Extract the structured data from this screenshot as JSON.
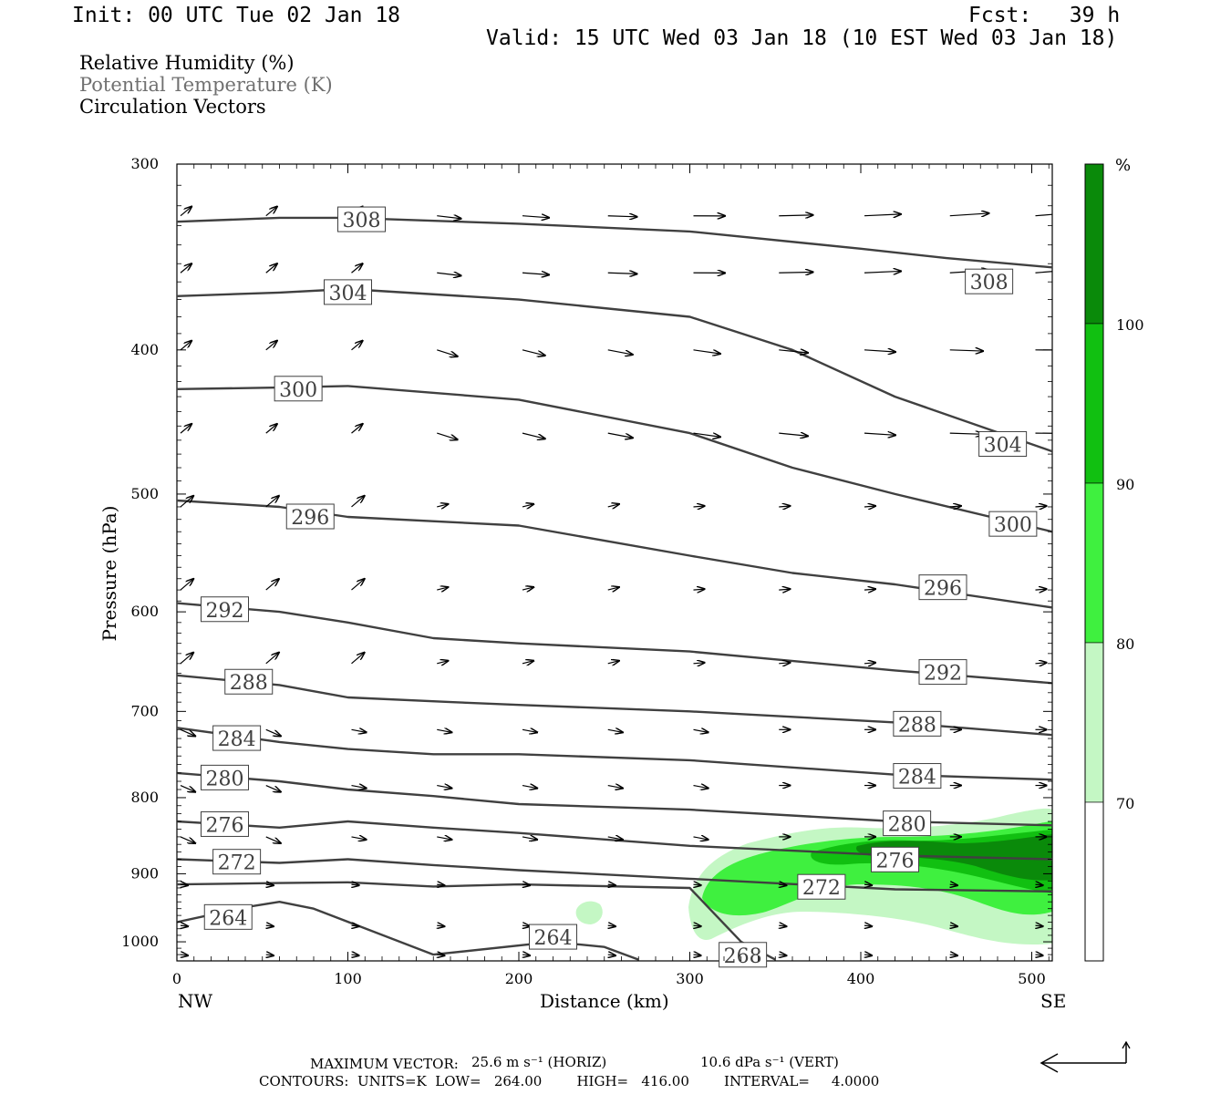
{
  "header": {
    "init": "Init: 00 UTC Tue 02 Jan 18",
    "fcst": "Fcst:   39 h",
    "valid": "Valid: 15 UTC Wed 03 Jan 18 (10 EST Wed 03 Jan 18)"
  },
  "legend": {
    "line1": "Relative Humidity (%)",
    "line2": "Potential Temperature (K)",
    "line3": "Circulation Vectors"
  },
  "footer": {
    "max_vector_label": "MAXIMUM VECTOR:",
    "max_vector_horiz": "25.6 m s⁻¹ (HORIZ)",
    "max_vector_vert": "10.6 dPa s⁻¹ (VERT)",
    "contours": "CONTOURS:  UNITS=K  LOW=   264.00        HIGH=   416.00        INTERVAL=     4.0000"
  },
  "colors": {
    "rh70": "#c4f7c4",
    "rh80": "#3ff03f",
    "rh90": "#11c011",
    "rh100": "#0a8a0a",
    "contour": "#404040",
    "vector": "#000000"
  },
  "chart_data": {
    "type": "contour",
    "xlabel": "Distance (km)",
    "ylabel": "Pressure (hPa)",
    "x_left_label": "NW",
    "x_right_label": "SE",
    "xlim": [
      0,
      512
    ],
    "ylim": [
      300,
      1030
    ],
    "y_scale": "log",
    "x_ticks": [
      0,
      100,
      200,
      300,
      400,
      500
    ],
    "y_ticks": [
      300,
      400,
      500,
      600,
      700,
      800,
      900,
      1000
    ],
    "colorbar": {
      "unit": "%",
      "levels": [
        70,
        80,
        90,
        100
      ],
      "fills": [
        "#ffffff",
        "#c4f7c4",
        "#3ff03f",
        "#11c011",
        "#0a8a0a"
      ]
    },
    "theta_contours": [
      {
        "label": "308",
        "x": [
          0,
          60,
          100,
          200,
          300,
          400,
          450,
          512
        ],
        "y": [
          328,
          326,
          326,
          329,
          333,
          342,
          347,
          352
        ],
        "labels_at": [
          [
            108,
            327
          ],
          [
            475,
            360
          ]
        ]
      },
      {
        "label": "304",
        "x": [
          0,
          60,
          100,
          200,
          300,
          360,
          420,
          512
        ],
        "y": [
          368,
          366,
          364,
          370,
          380,
          400,
          430,
          468
        ],
        "labels_at": [
          [
            100,
            366
          ],
          [
            483,
            463
          ]
        ]
      },
      {
        "label": "300",
        "x": [
          0,
          60,
          100,
          200,
          300,
          360,
          420,
          512
        ],
        "y": [
          425,
          424,
          423,
          432,
          455,
          480,
          500,
          530
        ],
        "labels_at": [
          [
            71,
            425
          ],
          [
            489,
            524
          ]
        ]
      },
      {
        "label": "296",
        "x": [
          0,
          60,
          100,
          200,
          300,
          360,
          420,
          512
        ],
        "y": [
          505,
          510,
          518,
          525,
          550,
          565,
          575,
          596
        ],
        "labels_at": [
          [
            78,
            518
          ],
          [
            448,
            578
          ]
        ]
      },
      {
        "label": "292",
        "x": [
          0,
          60,
          100,
          150,
          200,
          300,
          420,
          512
        ],
        "y": [
          592,
          600,
          610,
          625,
          630,
          638,
          657,
          670
        ],
        "labels_at": [
          [
            28,
            598
          ],
          [
            448,
            659
          ]
        ]
      },
      {
        "label": "288",
        "x": [
          0,
          60,
          100,
          160,
          200,
          300,
          420,
          512
        ],
        "y": [
          662,
          672,
          685,
          690,
          693,
          700,
          712,
          726
        ],
        "labels_at": [
          [
            42,
            669
          ],
          [
            433,
            714
          ]
        ]
      },
      {
        "label": "284",
        "x": [
          0,
          60,
          100,
          150,
          200,
          300,
          420,
          512
        ],
        "y": [
          718,
          734,
          742,
          748,
          748,
          755,
          772,
          778
        ],
        "labels_at": [
          [
            35,
            730
          ],
          [
            433,
            774
          ]
        ]
      },
      {
        "label": "280",
        "x": [
          0,
          60,
          100,
          150,
          200,
          300,
          420,
          512
        ],
        "y": [
          770,
          780,
          790,
          798,
          808,
          815,
          830,
          835
        ],
        "labels_at": [
          [
            28,
            776
          ],
          [
            427,
            833
          ]
        ]
      },
      {
        "label": "276",
        "x": [
          0,
          60,
          100,
          150,
          200,
          300,
          420,
          512
        ],
        "y": [
          830,
          838,
          830,
          838,
          845,
          862,
          875,
          880
        ],
        "labels_at": [
          [
            28,
            834
          ],
          [
            420,
            881
          ]
        ]
      },
      {
        "label": "272",
        "x": [
          0,
          60,
          100,
          150,
          200,
          300,
          420,
          512
        ],
        "y": [
          880,
          885,
          880,
          888,
          895,
          907,
          922,
          925
        ],
        "labels_at": [
          [
            35,
            884
          ],
          [
            377,
            919
          ]
        ]
      },
      {
        "label": "268",
        "x": [
          0,
          60,
          100,
          150,
          200,
          300,
          330,
          350
        ],
        "y": [
          915,
          913,
          912,
          918,
          915,
          920,
          1000,
          1028
        ],
        "labels_at": [
          [
            331,
            1021
          ]
        ]
      },
      {
        "label": "264",
        "x": [
          0,
          40,
          60,
          80,
          150,
          220,
          250,
          270
        ],
        "y": [
          970,
          948,
          940,
          950,
          1020,
          1000,
          1008,
          1028
        ],
        "labels_at": [
          [
            30,
            963
          ],
          [
            220,
            993
          ]
        ]
      }
    ],
    "rh_region_note": "near-saturated (>70%) zone from ~300 km to 512 km below ~920 hPa, max >100% near 440-512 km, 930-970 hPa"
  }
}
